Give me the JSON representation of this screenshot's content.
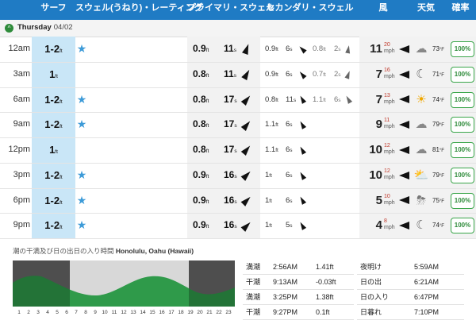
{
  "header": {
    "surf": "サーフ",
    "swell_rating": "スウェル(うねり)・レーティング",
    "primary": "プライマリ・スウェル",
    "secondary": "セカンダリ・スウェル",
    "wind": "風",
    "weather": "天気",
    "prob": "確率"
  },
  "day": {
    "name": "Thursday",
    "date": "04/02"
  },
  "rows": [
    {
      "time": "12am",
      "surf": "1-2",
      "unit": "ft",
      "star": "★",
      "p_h": "0.9",
      "p_per": "11",
      "s1_h": "0.9",
      "s1_per": "6",
      "s2_h": "0.8",
      "s2_per": "2",
      "wind": "11",
      "gust": "20",
      "wind_unit": "mph",
      "weather_icon": "cloud-moon-icon",
      "temp": "73",
      "temp_unit": "°F",
      "prob": "100%"
    },
    {
      "time": "3am",
      "surf": "1",
      "unit": "ft",
      "star": "",
      "p_h": "0.8",
      "p_per": "11",
      "s1_h": "0.9",
      "s1_per": "6",
      "s2_h": "0.7",
      "s2_per": "2",
      "wind": "7",
      "gust": "16",
      "wind_unit": "mph",
      "weather_icon": "moon-icon",
      "temp": "71",
      "temp_unit": "°F",
      "prob": "100%"
    },
    {
      "time": "6am",
      "surf": "1-2",
      "unit": "ft",
      "star": "★",
      "p_h": "0.8",
      "p_per": "17",
      "s1_h": "0.8",
      "s1_per": "11",
      "s2_h": "1.1",
      "s2_per": "6",
      "wind": "7",
      "gust": "13",
      "wind_unit": "mph",
      "weather_icon": "sun-icon",
      "temp": "74",
      "temp_unit": "°F",
      "prob": "100%"
    },
    {
      "time": "9am",
      "surf": "1-2",
      "unit": "ft",
      "star": "★",
      "p_h": "0.8",
      "p_per": "17",
      "s1_h": "1.1",
      "s1_per": "6",
      "s2_h": "",
      "s2_per": "",
      "wind": "9",
      "gust": "11",
      "wind_unit": "mph",
      "weather_icon": "cloud-icon",
      "temp": "79",
      "temp_unit": "°F",
      "prob": "100%"
    },
    {
      "time": "12pm",
      "surf": "1",
      "unit": "ft",
      "star": "",
      "p_h": "0.8",
      "p_per": "17",
      "s1_h": "1.1",
      "s1_per": "6",
      "s2_h": "",
      "s2_per": "",
      "wind": "10",
      "gust": "12",
      "wind_unit": "mph",
      "weather_icon": "cloud-icon",
      "temp": "81",
      "temp_unit": "°F",
      "prob": "100%"
    },
    {
      "time": "3pm",
      "surf": "1-2",
      "unit": "ft",
      "star": "★",
      "p_h": "0.9",
      "p_per": "16",
      "s1_h": "1",
      "s1_per": "6",
      "s2_h": "",
      "s2_per": "",
      "wind": "10",
      "gust": "12",
      "wind_unit": "mph",
      "weather_icon": "sun-cloud-rain-icon",
      "temp": "79",
      "temp_unit": "°F",
      "prob": "100%"
    },
    {
      "time": "6pm",
      "surf": "1-2",
      "unit": "ft",
      "star": "★",
      "p_h": "0.9",
      "p_per": "16",
      "s1_h": "1",
      "s1_per": "6",
      "s2_h": "",
      "s2_per": "",
      "wind": "5",
      "gust": "10",
      "wind_unit": "mph",
      "weather_icon": "cloud-rain-icon",
      "temp": "75",
      "temp_unit": "°F",
      "prob": "100%"
    },
    {
      "time": "9pm",
      "surf": "1-2",
      "unit": "ft",
      "star": "★",
      "p_h": "0.9",
      "p_per": "16",
      "s1_h": "1",
      "s1_per": "5",
      "s2_h": "",
      "s2_per": "",
      "wind": "4",
      "gust": "8",
      "wind_unit": "mph",
      "weather_icon": "moon-icon",
      "temp": "74",
      "temp_unit": "°F",
      "prob": "100%"
    }
  ],
  "period_unit": "s",
  "tide": {
    "title": "潮の干満及び日の出日の入り時間",
    "location": "Honolulu, Oahu (Hawaii)",
    "hours": [
      "1",
      "2",
      "3",
      "4",
      "5",
      "6",
      "7",
      "8",
      "9",
      "10",
      "11",
      "12",
      "13",
      "14",
      "15",
      "16",
      "17",
      "18",
      "19",
      "20",
      "21",
      "22",
      "23"
    ],
    "entries": [
      {
        "type": "満潮",
        "time": "2:56AM",
        "height": "1.41ft"
      },
      {
        "type": "干潮",
        "time": "9:13AM",
        "height": "-0.03ft"
      },
      {
        "type": "満潮",
        "time": "3:25PM",
        "height": "1.38ft"
      },
      {
        "type": "干潮",
        "time": "9:27PM",
        "height": "0.1ft"
      }
    ]
  },
  "sun": [
    {
      "label": "夜明け",
      "time": "5:59AM"
    },
    {
      "label": "日の出",
      "time": "6:21AM"
    },
    {
      "label": "日の入り",
      "time": "6:47PM"
    },
    {
      "label": "日暮れ",
      "time": "7:10PM"
    }
  ]
}
